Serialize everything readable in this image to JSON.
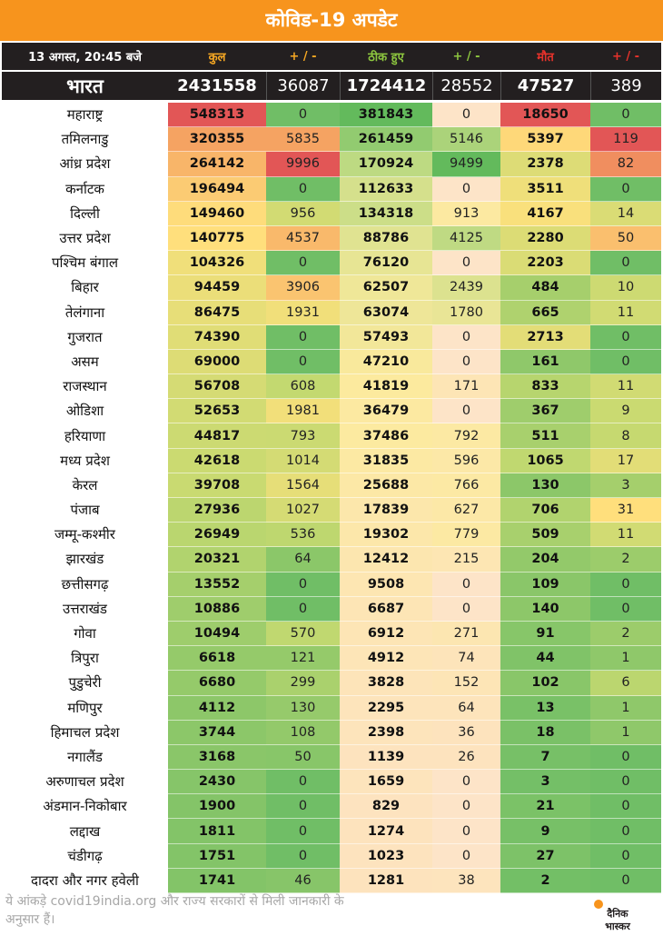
{
  "title": "कोविड-19 अपडेट",
  "header": {
    "timestamp": "13 अगस्त, 20:45 बजे",
    "columns": [
      "कुल",
      "+ / -",
      "ठीक हुए",
      "+ / -",
      "मौत",
      "+ / -"
    ],
    "column_colors": [
      "#f7a823",
      "#f7a823",
      "#8dc63f",
      "#8dc63f",
      "#e8322b",
      "#e8322b"
    ]
  },
  "national": {
    "name": "भारत",
    "total": "2431558",
    "total_change": "36087",
    "recovered": "1724412",
    "recovered_change": "28552",
    "deaths": "47527",
    "deaths_change": "389"
  },
  "rows": [
    [
      "महाराष्ट्र",
      "548313",
      "0",
      "381843",
      "0",
      "18650",
      "0"
    ],
    [
      "तमिलनाडु",
      "320355",
      "5835",
      "261459",
      "5146",
      "5397",
      "119"
    ],
    [
      "आंध्र प्रदेश",
      "264142",
      "9996",
      "170924",
      "9499",
      "2378",
      "82"
    ],
    [
      "कर्नाटक",
      "196494",
      "0",
      "112633",
      "0",
      "3511",
      "0"
    ],
    [
      "दिल्ली",
      "149460",
      "956",
      "134318",
      "913",
      "4167",
      "14"
    ],
    [
      "उत्तर प्रदेश",
      "140775",
      "4537",
      "88786",
      "4125",
      "2280",
      "50"
    ],
    [
      "पश्चिम बंगाल",
      "104326",
      "0",
      "76120",
      "0",
      "2203",
      "0"
    ],
    [
      "बिहार",
      "94459",
      "3906",
      "62507",
      "2439",
      "484",
      "10"
    ],
    [
      "तेलंगाना",
      "86475",
      "1931",
      "63074",
      "1780",
      "665",
      "11"
    ],
    [
      "गुजरात",
      "74390",
      "0",
      "57493",
      "0",
      "2713",
      "0"
    ],
    [
      "असम",
      "69000",
      "0",
      "47210",
      "0",
      "161",
      "0"
    ],
    [
      "राजस्थान",
      "56708",
      "608",
      "41819",
      "171",
      "833",
      "11"
    ],
    [
      "ओडिशा",
      "52653",
      "1981",
      "36479",
      "0",
      "367",
      "9"
    ],
    [
      "हरियाणा",
      "44817",
      "793",
      "37486",
      "792",
      "511",
      "8"
    ],
    [
      "मध्य प्रदेश",
      "42618",
      "1014",
      "31835",
      "596",
      "1065",
      "17"
    ],
    [
      "केरल",
      "39708",
      "1564",
      "25688",
      "766",
      "130",
      "3"
    ],
    [
      "पंजाब",
      "27936",
      "1027",
      "17839",
      "627",
      "706",
      "31"
    ],
    [
      "जम्मू-कश्मीर",
      "26949",
      "536",
      "19302",
      "779",
      "509",
      "11"
    ],
    [
      "झारखंड",
      "20321",
      "64",
      "12412",
      "215",
      "204",
      "2"
    ],
    [
      "छत्तीसगढ़",
      "13552",
      "0",
      "9508",
      "0",
      "109",
      "0"
    ],
    [
      "उत्तराखंड",
      "10886",
      "0",
      "6687",
      "0",
      "140",
      "0"
    ],
    [
      "गोवा",
      "10494",
      "570",
      "6912",
      "271",
      "91",
      "2"
    ],
    [
      "त्रिपुरा",
      "6618",
      "121",
      "4912",
      "74",
      "44",
      "1"
    ],
    [
      "पुडुचेरी",
      "6680",
      "299",
      "3828",
      "152",
      "102",
      "6"
    ],
    [
      "मणिपुर",
      "4112",
      "130",
      "2295",
      "64",
      "13",
      "1"
    ],
    [
      "हिमाचल प्रदेश",
      "3744",
      "108",
      "2398",
      "36",
      "18",
      "1"
    ],
    [
      "नगालैंड",
      "3168",
      "50",
      "1139",
      "26",
      "7",
      "0"
    ],
    [
      "अरुणाचल प्रदेश",
      "2430",
      "0",
      "1659",
      "0",
      "3",
      "0"
    ],
    [
      "अंडमान-निकोबार",
      "1900",
      "0",
      "829",
      "0",
      "21",
      "0"
    ],
    [
      "लद्दाख",
      "1811",
      "0",
      "1274",
      "0",
      "9",
      "0"
    ],
    [
      "चंडीगढ़",
      "1751",
      "0",
      "1023",
      "0",
      "27",
      "0"
    ],
    [
      "दादरा और नगर हवेली",
      "1741",
      "46",
      "1281",
      "38",
      "2",
      "0"
    ]
  ],
  "footnote": "ये आंकड़े covid19india.org और राज्य सरकारों से मिली जानकारी के अनुसार हैं।",
  "logo": {
    "top": "दैनिक",
    "bottom": "भास्कर"
  }
}
